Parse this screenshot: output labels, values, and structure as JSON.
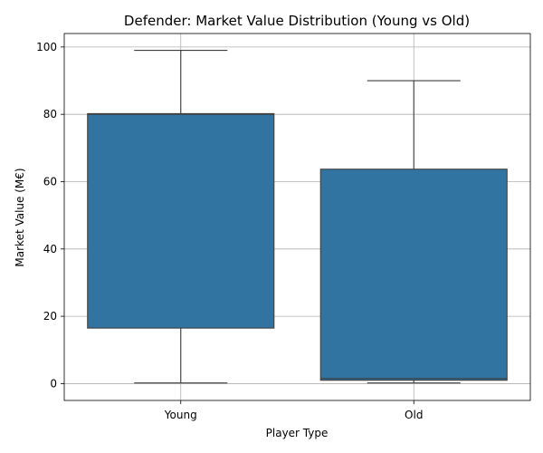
{
  "chart_data": {
    "type": "box",
    "title": "Defender: Market Value Distribution (Young vs Old)",
    "xlabel": "Player Type",
    "ylabel": "Market Value (M€)",
    "categories": [
      "Young",
      "Old"
    ],
    "boxes": [
      {
        "category": "Young",
        "whisker_low": 0.2,
        "q1": 16.5,
        "median": 80.0,
        "q3": 80.2,
        "whisker_high": 99.0
      },
      {
        "category": "Old",
        "whisker_low": 0.2,
        "q1": 1.0,
        "median": 1.5,
        "q3": 63.7,
        "whisker_high": 90.0
      }
    ],
    "ylim": [
      -5,
      104
    ],
    "yticks": [
      0,
      20,
      40,
      60,
      80,
      100
    ],
    "grid": true,
    "colors": {
      "box_fill": "#3274a1",
      "box_edge": "#3f3f3f",
      "grid": "#b0b0b0",
      "axis": "#000000"
    }
  }
}
